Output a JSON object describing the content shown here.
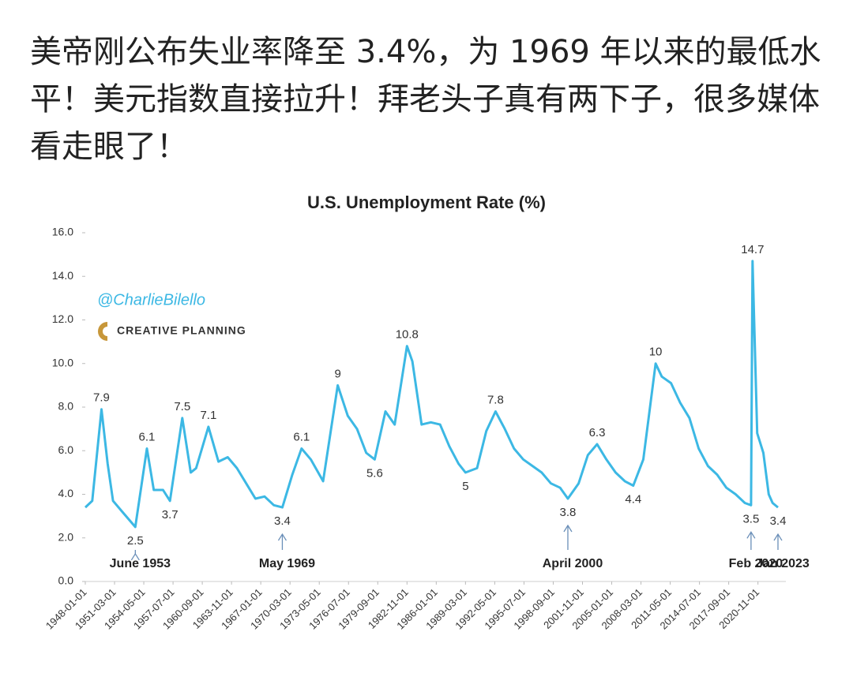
{
  "post": {
    "text": "美帝刚公布失业率降至 3.4%，为 1969 年以来的最低水平！美元指数直接拉升！拜老头子真有两下子，很多媒体看走眼了！"
  },
  "chart_data": {
    "type": "line",
    "title": "U.S. Unemployment Rate (%)",
    "watermark_handle": "@CharlieBilello",
    "watermark_brand": "CREATIVE PLANNING",
    "color": "#3cb8e4",
    "x": [
      "1948-01-01",
      "1948-10-01",
      "1949-10-01",
      "1950-06-01",
      "1951-01-01",
      "1952-01-01",
      "1953-06-01",
      "1954-09-01",
      "1955-06-01",
      "1956-06-01",
      "1957-03-01",
      "1958-07-01",
      "1959-06-01",
      "1960-01-01",
      "1961-05-01",
      "1962-06-01",
      "1963-06-01",
      "1964-06-01",
      "1965-06-01",
      "1966-06-01",
      "1967-06-01",
      "1968-06-01",
      "1969-05-01",
      "1970-06-01",
      "1971-06-01",
      "1972-06-01",
      "1973-10-01",
      "1975-05-01",
      "1976-06-01",
      "1977-06-01",
      "1978-06-01",
      "1979-05-01",
      "1980-07-01",
      "1981-07-01",
      "1982-11-01",
      "1983-06-01",
      "1984-06-01",
      "1985-06-01",
      "1986-06-01",
      "1987-06-01",
      "1988-06-01",
      "1989-03-01",
      "1990-06-01",
      "1991-06-01",
      "1992-06-01",
      "1993-06-01",
      "1994-06-01",
      "1995-06-01",
      "1996-06-01",
      "1997-06-01",
      "1998-06-01",
      "1999-06-01",
      "2000-04-01",
      "2001-06-01",
      "2002-06-01",
      "2003-06-01",
      "2004-06-01",
      "2005-06-01",
      "2006-06-01",
      "2007-05-01",
      "2008-06-01",
      "2009-10-01",
      "2010-06-01",
      "2011-06-01",
      "2012-06-01",
      "2013-06-01",
      "2014-06-01",
      "2015-06-01",
      "2016-06-01",
      "2017-06-01",
      "2018-06-01",
      "2019-06-01",
      "2020-02-01",
      "2020-04-01",
      "2020-10-01",
      "2021-06-01",
      "2022-01-01",
      "2022-06-01",
      "2023-01-01"
    ],
    "values": [
      3.4,
      3.7,
      7.9,
      5.4,
      3.7,
      3.2,
      2.5,
      6.1,
      4.2,
      4.2,
      3.7,
      7.5,
      5.0,
      5.2,
      7.1,
      5.5,
      5.7,
      5.2,
      4.5,
      3.8,
      3.9,
      3.5,
      3.4,
      4.9,
      6.1,
      5.6,
      4.6,
      9.0,
      7.6,
      7.0,
      5.9,
      5.6,
      7.8,
      7.2,
      10.8,
      10.1,
      7.2,
      7.3,
      7.2,
      6.2,
      5.4,
      5.0,
      5.2,
      6.9,
      7.8,
      7.0,
      6.1,
      5.6,
      5.3,
      5.0,
      4.5,
      4.3,
      3.8,
      4.5,
      5.8,
      6.3,
      5.6,
      5.0,
      4.6,
      4.4,
      5.6,
      10.0,
      9.4,
      9.1,
      8.2,
      7.5,
      6.1,
      5.3,
      4.9,
      4.3,
      4.0,
      3.6,
      3.5,
      14.7,
      6.8,
      5.9,
      4.0,
      3.6,
      3.4
    ],
    "annotations": [
      {
        "x": "1949-10-01",
        "value": 7.9
      },
      {
        "x": "1953-06-01",
        "value": 2.5
      },
      {
        "x": "1954-09-01",
        "value": 6.1
      },
      {
        "x": "1957-03-01",
        "value": 3.7
      },
      {
        "x": "1958-07-01",
        "value": 7.5
      },
      {
        "x": "1961-05-01",
        "value": 7.1
      },
      {
        "x": "1969-05-01",
        "value": 3.4
      },
      {
        "x": "1971-06-01",
        "value": 6.1
      },
      {
        "x": "1975-05-01",
        "value": 9.0
      },
      {
        "x": "1979-05-01",
        "value": 5.6
      },
      {
        "x": "1982-11-01",
        "value": 10.8
      },
      {
        "x": "1989-03-01",
        "value": 5.0
      },
      {
        "x": "1992-06-01",
        "value": 7.8
      },
      {
        "x": "2000-04-01",
        "value": 3.8
      },
      {
        "x": "2003-06-01",
        "value": 6.3
      },
      {
        "x": "2007-05-01",
        "value": 4.4
      },
      {
        "x": "2009-10-01",
        "value": 10.0
      },
      {
        "x": "2020-04-01",
        "value": 14.7
      },
      {
        "x": "2020-02-01",
        "value": 3.5
      },
      {
        "x": "2023-01-01",
        "value": 3.4
      }
    ],
    "callouts": [
      {
        "x": "1953-06-01",
        "label": "June 1953"
      },
      {
        "x": "1969-05-01",
        "label": "May 1969"
      },
      {
        "x": "2000-04-01",
        "label": "April 2000"
      },
      {
        "x": "2020-02-01",
        "label": "Feb 2020"
      },
      {
        "x": "2023-01-01",
        "label": "Jan 2023"
      }
    ],
    "xlim": [
      "1948-01-01",
      "2023-01-01"
    ],
    "xticks": [
      "1948-01-01",
      "1951-03-01",
      "1954-05-01",
      "1957-07-01",
      "1960-09-01",
      "1963-11-01",
      "1967-01-01",
      "1970-03-01",
      "1973-05-01",
      "1976-07-01",
      "1979-09-01",
      "1982-11-01",
      "1986-01-01",
      "1989-03-01",
      "1992-05-01",
      "1995-07-01",
      "1998-09-01",
      "2001-11-01",
      "2005-01-01",
      "2008-03-01",
      "2011-05-01",
      "2014-07-01",
      "2017-09-01",
      "2020-11-01"
    ],
    "ylim": [
      0,
      16
    ],
    "yticks": [
      {
        "value": 0,
        "label": "0.0"
      },
      {
        "value": 2,
        "label": "2.0"
      },
      {
        "value": 4,
        "label": "4.0"
      },
      {
        "value": 6,
        "label": "6.0"
      },
      {
        "value": 8,
        "label": "8.0"
      },
      {
        "value": 10,
        "label": "10.0"
      },
      {
        "value": 12,
        "label": "12.0"
      },
      {
        "value": 14,
        "label": "14.0"
      },
      {
        "value": 16,
        "label": "16.0"
      }
    ]
  }
}
